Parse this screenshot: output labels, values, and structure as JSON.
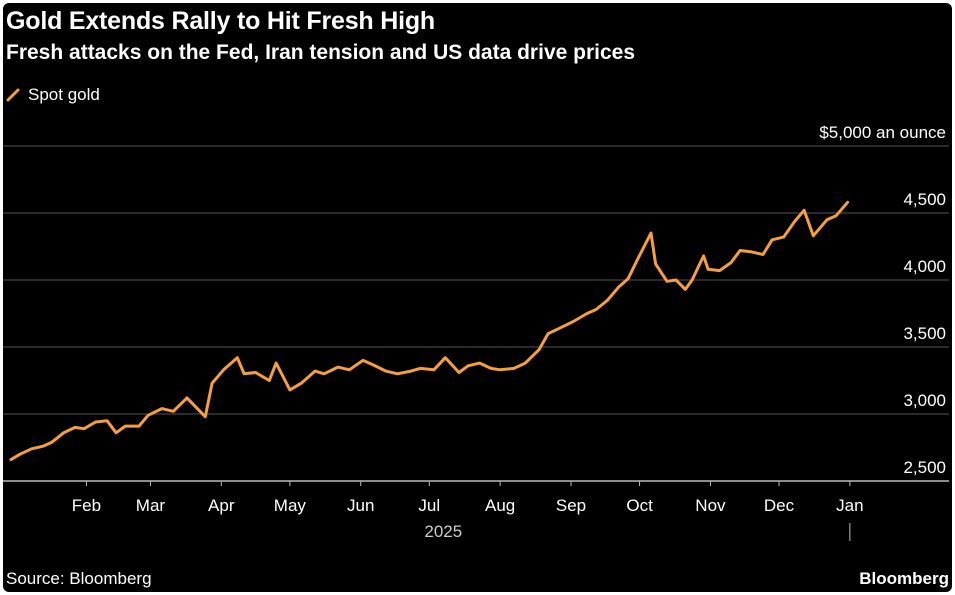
{
  "header": {
    "title": "Gold Extends Rally to Hit Fresh High",
    "subtitle": "Fresh attacks on the Fed, Iran tension and US data drive prices"
  },
  "footer": {
    "source": "Source: Bloomberg",
    "brand": "Bloomberg"
  },
  "colors": {
    "background": "#000000",
    "line": "#f5a03c",
    "grid": "#555555",
    "text": "#ffffff"
  },
  "chart_data": {
    "type": "line",
    "title": "Gold Extends Rally to Hit Fresh High",
    "subtitle": "Fresh attacks on the Fed, Iran tension and US data drive prices",
    "xlabel": "2025",
    "ylabel": "",
    "y_unit_label": "$5,000 an ounce",
    "ylim": [
      2500,
      5000
    ],
    "xlim": [
      "2025-01-13",
      "2026-01-26"
    ],
    "y_ticks": [
      {
        "value": 2500,
        "label": "2,500"
      },
      {
        "value": 3000,
        "label": "3,000"
      },
      {
        "value": 3500,
        "label": "3,500"
      },
      {
        "value": 4000,
        "label": "4,000"
      },
      {
        "value": 4500,
        "label": "4,500"
      },
      {
        "value": 5000,
        "label": "$5,000 an ounce"
      }
    ],
    "x_ticks": [
      {
        "date": "2025-02-15",
        "label": "Feb"
      },
      {
        "date": "2025-03-15",
        "label": "Mar"
      },
      {
        "date": "2025-04-15",
        "label": "Apr"
      },
      {
        "date": "2025-05-15",
        "label": "May"
      },
      {
        "date": "2025-06-15",
        "label": "Jun"
      },
      {
        "date": "2025-07-15",
        "label": "Jul"
      },
      {
        "date": "2025-08-15",
        "label": "Aug"
      },
      {
        "date": "2025-09-15",
        "label": "Sep"
      },
      {
        "date": "2025-10-15",
        "label": "Oct"
      },
      {
        "date": "2025-11-15",
        "label": "Nov"
      },
      {
        "date": "2025-12-15",
        "label": "Dec"
      },
      {
        "date": "2026-01-15",
        "label": "Jan"
      }
    ],
    "grid": true,
    "legend": "top-left",
    "series": [
      {
        "name": "Spot gold",
        "color": "#f5a03c",
        "points": [
          [
            "2025-01-13",
            2660
          ],
          [
            "2025-01-17",
            2700
          ],
          [
            "2025-01-22",
            2740
          ],
          [
            "2025-01-27",
            2760
          ],
          [
            "2025-01-31",
            2790
          ],
          [
            "2025-02-05",
            2860
          ],
          [
            "2025-02-10",
            2900
          ],
          [
            "2025-02-14",
            2890
          ],
          [
            "2025-02-19",
            2940
          ],
          [
            "2025-02-24",
            2950
          ],
          [
            "2025-02-28",
            2860
          ],
          [
            "2025-03-04",
            2910
          ],
          [
            "2025-03-10",
            2910
          ],
          [
            "2025-03-14",
            2990
          ],
          [
            "2025-03-20",
            3040
          ],
          [
            "2025-03-25",
            3020
          ],
          [
            "2025-03-31",
            3120
          ],
          [
            "2025-04-04",
            3050
          ],
          [
            "2025-04-08",
            2980
          ],
          [
            "2025-04-11",
            3230
          ],
          [
            "2025-04-16",
            3330
          ],
          [
            "2025-04-22",
            3420
          ],
          [
            "2025-04-25",
            3300
          ],
          [
            "2025-04-30",
            3310
          ],
          [
            "2025-05-06",
            3250
          ],
          [
            "2025-05-09",
            3380
          ],
          [
            "2025-05-15",
            3180
          ],
          [
            "2025-05-20",
            3230
          ],
          [
            "2025-05-26",
            3320
          ],
          [
            "2025-05-30",
            3300
          ],
          [
            "2025-06-05",
            3350
          ],
          [
            "2025-06-10",
            3330
          ],
          [
            "2025-06-16",
            3400
          ],
          [
            "2025-06-20",
            3370
          ],
          [
            "2025-06-26",
            3320
          ],
          [
            "2025-07-01",
            3300
          ],
          [
            "2025-07-07",
            3320
          ],
          [
            "2025-07-11",
            3340
          ],
          [
            "2025-07-17",
            3330
          ],
          [
            "2025-07-22",
            3420
          ],
          [
            "2025-07-28",
            3310
          ],
          [
            "2025-08-01",
            3360
          ],
          [
            "2025-08-06",
            3380
          ],
          [
            "2025-08-11",
            3340
          ],
          [
            "2025-08-15",
            3330
          ],
          [
            "2025-08-21",
            3340
          ],
          [
            "2025-08-26",
            3380
          ],
          [
            "2025-09-01",
            3480
          ],
          [
            "2025-09-05",
            3600
          ],
          [
            "2025-09-10",
            3640
          ],
          [
            "2025-09-16",
            3690
          ],
          [
            "2025-09-22",
            3750
          ],
          [
            "2025-09-26",
            3780
          ],
          [
            "2025-10-01",
            3850
          ],
          [
            "2025-10-06",
            3950
          ],
          [
            "2025-10-10",
            4010
          ],
          [
            "2025-10-14",
            4150
          ],
          [
            "2025-10-17",
            4250
          ],
          [
            "2025-10-20",
            4350
          ],
          [
            "2025-10-22",
            4120
          ],
          [
            "2025-10-27",
            3990
          ],
          [
            "2025-10-31",
            4000
          ],
          [
            "2025-11-04",
            3930
          ],
          [
            "2025-11-07",
            4000
          ],
          [
            "2025-11-12",
            4180
          ],
          [
            "2025-11-14",
            4080
          ],
          [
            "2025-11-19",
            4070
          ],
          [
            "2025-11-24",
            4130
          ],
          [
            "2025-11-28",
            4220
          ],
          [
            "2025-12-03",
            4210
          ],
          [
            "2025-12-08",
            4190
          ],
          [
            "2025-12-12",
            4300
          ],
          [
            "2025-12-17",
            4320
          ],
          [
            "2025-12-22",
            4440
          ],
          [
            "2025-12-26",
            4520
          ],
          [
            "2025-12-30",
            4330
          ],
          [
            "2026-01-05",
            4450
          ],
          [
            "2026-01-09",
            4480
          ],
          [
            "2026-01-14",
            4580
          ]
        ]
      }
    ]
  }
}
